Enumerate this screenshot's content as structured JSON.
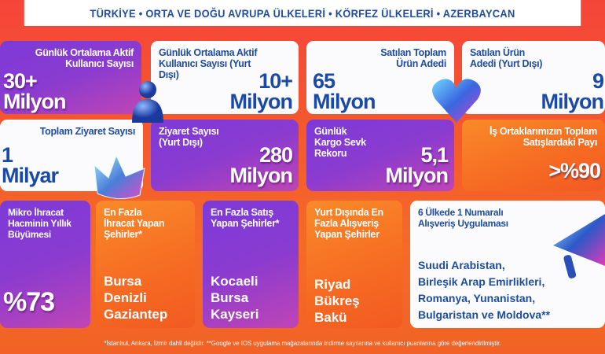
{
  "header": {
    "title": "TÜRKİYE • ORTA VE DOĞU AVRUPA ÜLKELERİ • KÖRFEZ ÜLKELERİ • AZERBAYCAN"
  },
  "row1": [
    {
      "label": "Günlük Ortalama Aktif Kullanıcı Sayısı",
      "value": "30+",
      "unit": "Milyon"
    },
    {
      "label": "Günlük Ortalama Aktif Kullanıcı Sayısı (Yurt Dışı)",
      "value": "10+",
      "unit": "Milyon"
    },
    {
      "label": "Satılan Toplam Ürün Adedi",
      "value": "65",
      "unit": "Milyon"
    },
    {
      "label": "Satılan Ürün Adedi (Yurt Dışı)",
      "value": "9",
      "unit": "Milyon"
    }
  ],
  "row2": [
    {
      "label": "Toplam Ziyaret Sayısı",
      "value": "1",
      "unit": "Milyar"
    },
    {
      "label": "Ziyaret Sayısı (Yurt Dışı)",
      "value": "280",
      "unit": "Milyon"
    },
    {
      "label": "Günlük Kargo Sevk Rekoru",
      "value": "5,1",
      "unit": "Milyon"
    },
    {
      "label": "İş Ortaklarımızın Toplam Satışlardaki Payı",
      "value": ">%90"
    }
  ],
  "row3": [
    {
      "label": "Mikro İhracat Hacminin Yıllık Büyümesi",
      "value": "%73"
    },
    {
      "label": "En Fazla İhracat Yapan Şehirler*",
      "items": [
        "Bursa",
        "Denizli",
        "Gaziantep"
      ]
    },
    {
      "label": "En Fazla Satış Yapan Şehirler*",
      "items": [
        "Kocaeli",
        "Bursa",
        "Kayseri"
      ]
    },
    {
      "label": "Yurt Dışında En Fazla Alışveriş Yapan Şehirler",
      "items": [
        "Riyad",
        "Bükreş",
        "Bakü"
      ]
    },
    {
      "label": "6 Ülkede 1 Numaralı Alışveriş Uygulaması",
      "items": [
        "Suudi Arabistan,",
        "Birleşik Arap Emirlikleri,",
        "Romanya, Yunanistan,",
        "Bulgaristan ve Moldova**"
      ]
    }
  ],
  "footer": "*İstanbul, Ankara, İzmir dahil değildir. **Google ve IOS uygulama mağazalarında indirme sayılarına ve kullanıcı puanlarına göre değerlendirilmiştir.",
  "icons": [
    "user-figure-icon",
    "heart-icon",
    "crown-icon",
    "megaphone-icon"
  ]
}
